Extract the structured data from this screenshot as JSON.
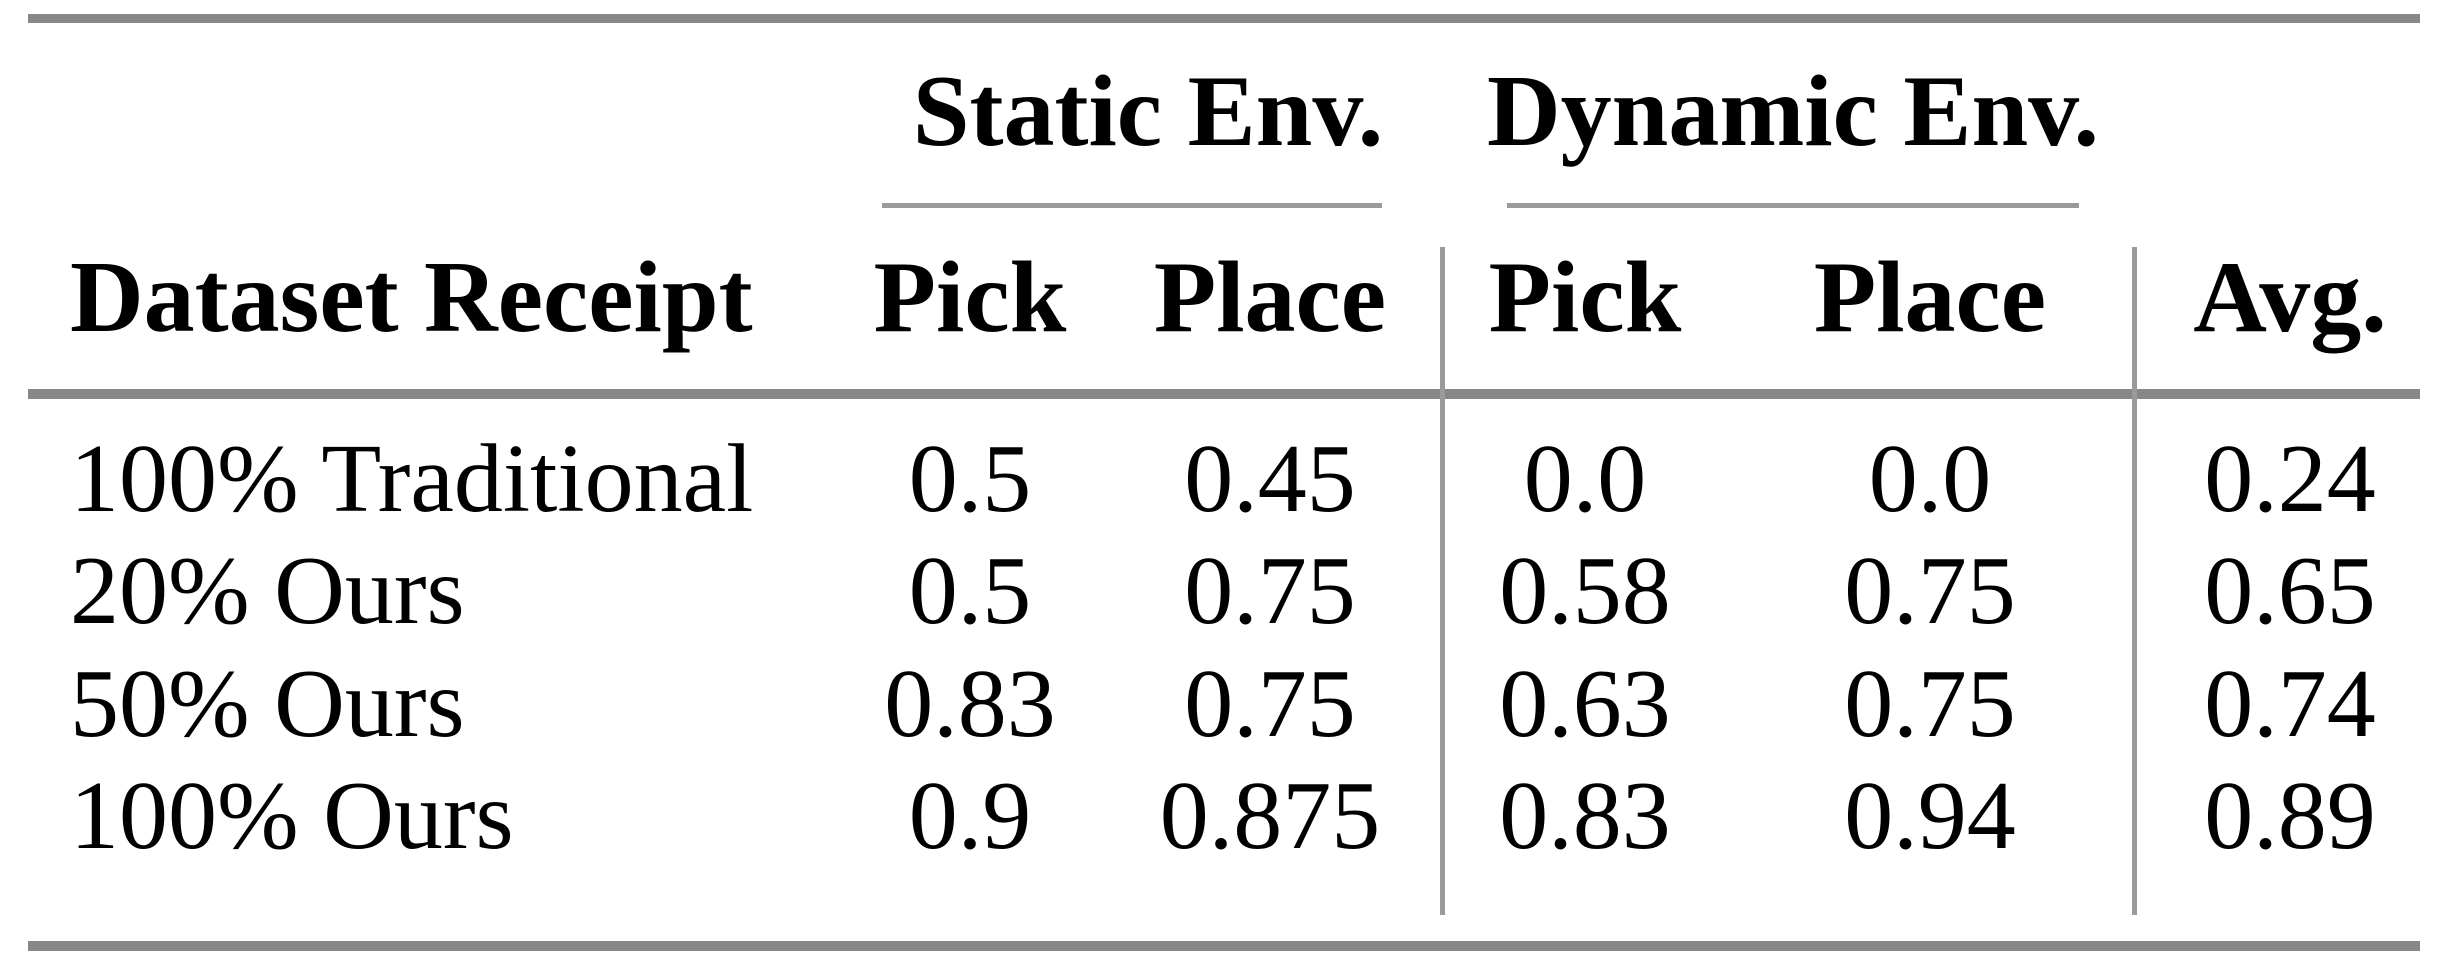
{
  "table": {
    "group_headers": [
      {
        "label": "Static Env."
      },
      {
        "label": "Dynamic Env."
      }
    ],
    "column_headers": {
      "dataset": "Dataset Receipt",
      "static_pick": "Pick",
      "static_place": "Place",
      "dynamic_pick": "Pick",
      "dynamic_place": "Place",
      "avg": "Avg."
    },
    "rows": [
      {
        "cells": [
          "100% Traditional",
          "0.5",
          "0.45",
          "0.0",
          "0.0",
          "0.24"
        ]
      },
      {
        "cells": [
          "20% Ours",
          "0.5",
          "0.75",
          "0.58",
          "0.75",
          "0.65"
        ]
      },
      {
        "cells": [
          "50% Ours",
          "0.83",
          "0.75",
          "0.63",
          "0.75",
          "0.74"
        ]
      },
      {
        "cells": [
          "100% Ours",
          "0.9",
          "0.875",
          "0.83",
          "0.94",
          "0.89"
        ]
      }
    ]
  },
  "colors": {
    "background": "#ffffff",
    "text": "#000000",
    "thick_rule": "#878787",
    "thin_rule": "#9a9a9a"
  },
  "chart_data": {
    "type": "table",
    "column_groups": [
      "",
      "Static Env.",
      "Static Env.",
      "Dynamic Env.",
      "Dynamic Env.",
      ""
    ],
    "columns": [
      "Dataset Receipt",
      "Pick (Static Env.)",
      "Place (Static Env.)",
      "Pick (Dynamic Env.)",
      "Place (Dynamic Env.)",
      "Avg."
    ],
    "rows": [
      [
        "100% Traditional",
        0.5,
        0.45,
        0.0,
        0.0,
        0.24
      ],
      [
        "20% Ours",
        0.5,
        0.75,
        0.58,
        0.75,
        0.65
      ],
      [
        "50% Ours",
        0.83,
        0.75,
        0.63,
        0.75,
        0.74
      ],
      [
        "100% Ours",
        0.9,
        0.875,
        0.83,
        0.94,
        0.89
      ]
    ]
  }
}
